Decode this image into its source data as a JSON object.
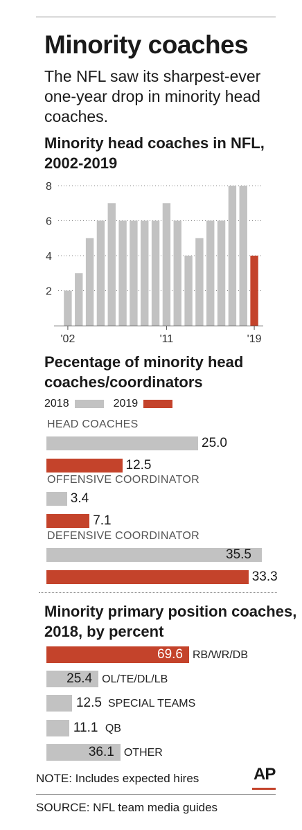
{
  "header": {
    "title": "Minority coaches",
    "subtitle": "The NFL saw its sharpest-ever one-year drop in minority head coaches."
  },
  "colors": {
    "gray": "#c2c2c2",
    "accent": "#c4432b",
    "text": "#1a1a1a",
    "label_gray": "#555555"
  },
  "chart_data": [
    {
      "type": "bar",
      "title": "Minority head coaches in NFL, 2002-2019",
      "x": [
        2002,
        2003,
        2004,
        2005,
        2006,
        2007,
        2008,
        2009,
        2010,
        2011,
        2012,
        2013,
        2014,
        2015,
        2016,
        2017,
        2018,
        2019
      ],
      "values": [
        2,
        3,
        5,
        6,
        7,
        6,
        6,
        6,
        6,
        7,
        6,
        4,
        5,
        6,
        6,
        8,
        8,
        4
      ],
      "highlight_index": 17,
      "x_tick_labels": [
        "'02",
        "'11",
        "'19"
      ],
      "x_tick_years": [
        2002,
        2011,
        2019
      ],
      "y_ticks": [
        2,
        4,
        6,
        8
      ],
      "ylim": [
        0,
        8
      ],
      "grid": "dotted horizontal"
    },
    {
      "type": "bar",
      "orientation": "horizontal",
      "title": "Pecentage of minority head coaches/coordinators",
      "legend": [
        "2018",
        "2019"
      ],
      "legend_placement": "top-left",
      "categories": [
        "HEAD COACHES",
        "OFFENSIVE COORDINATOR",
        "DEFENSIVE COORDINATOR"
      ],
      "series": [
        {
          "name": "2018",
          "values": [
            25.0,
            3.4,
            35.5
          ],
          "labels": [
            "25.0",
            "3.4",
            "35.5"
          ]
        },
        {
          "name": "2019",
          "values": [
            12.5,
            7.1,
            33.3
          ],
          "labels": [
            "12.5",
            "7.1",
            "33.3"
          ]
        }
      ]
    },
    {
      "type": "bar",
      "orientation": "horizontal",
      "title": "Minority primary position coaches, 2018, by percent",
      "categories": [
        "RB/WR/DB",
        "OL/TE/DL/LB",
        "SPECIAL TEAMS",
        "QB",
        "OTHER"
      ],
      "values": [
        69.6,
        25.4,
        12.5,
        11.1,
        36.1
      ],
      "labels": [
        "69.6",
        "25.4",
        "12.5",
        "11.1",
        "36.1"
      ],
      "highlight_index": 0
    }
  ],
  "footer": {
    "note": "NOTE: Includes expected hires",
    "logo": "AP",
    "source": "SOURCE: NFL team media guides"
  }
}
